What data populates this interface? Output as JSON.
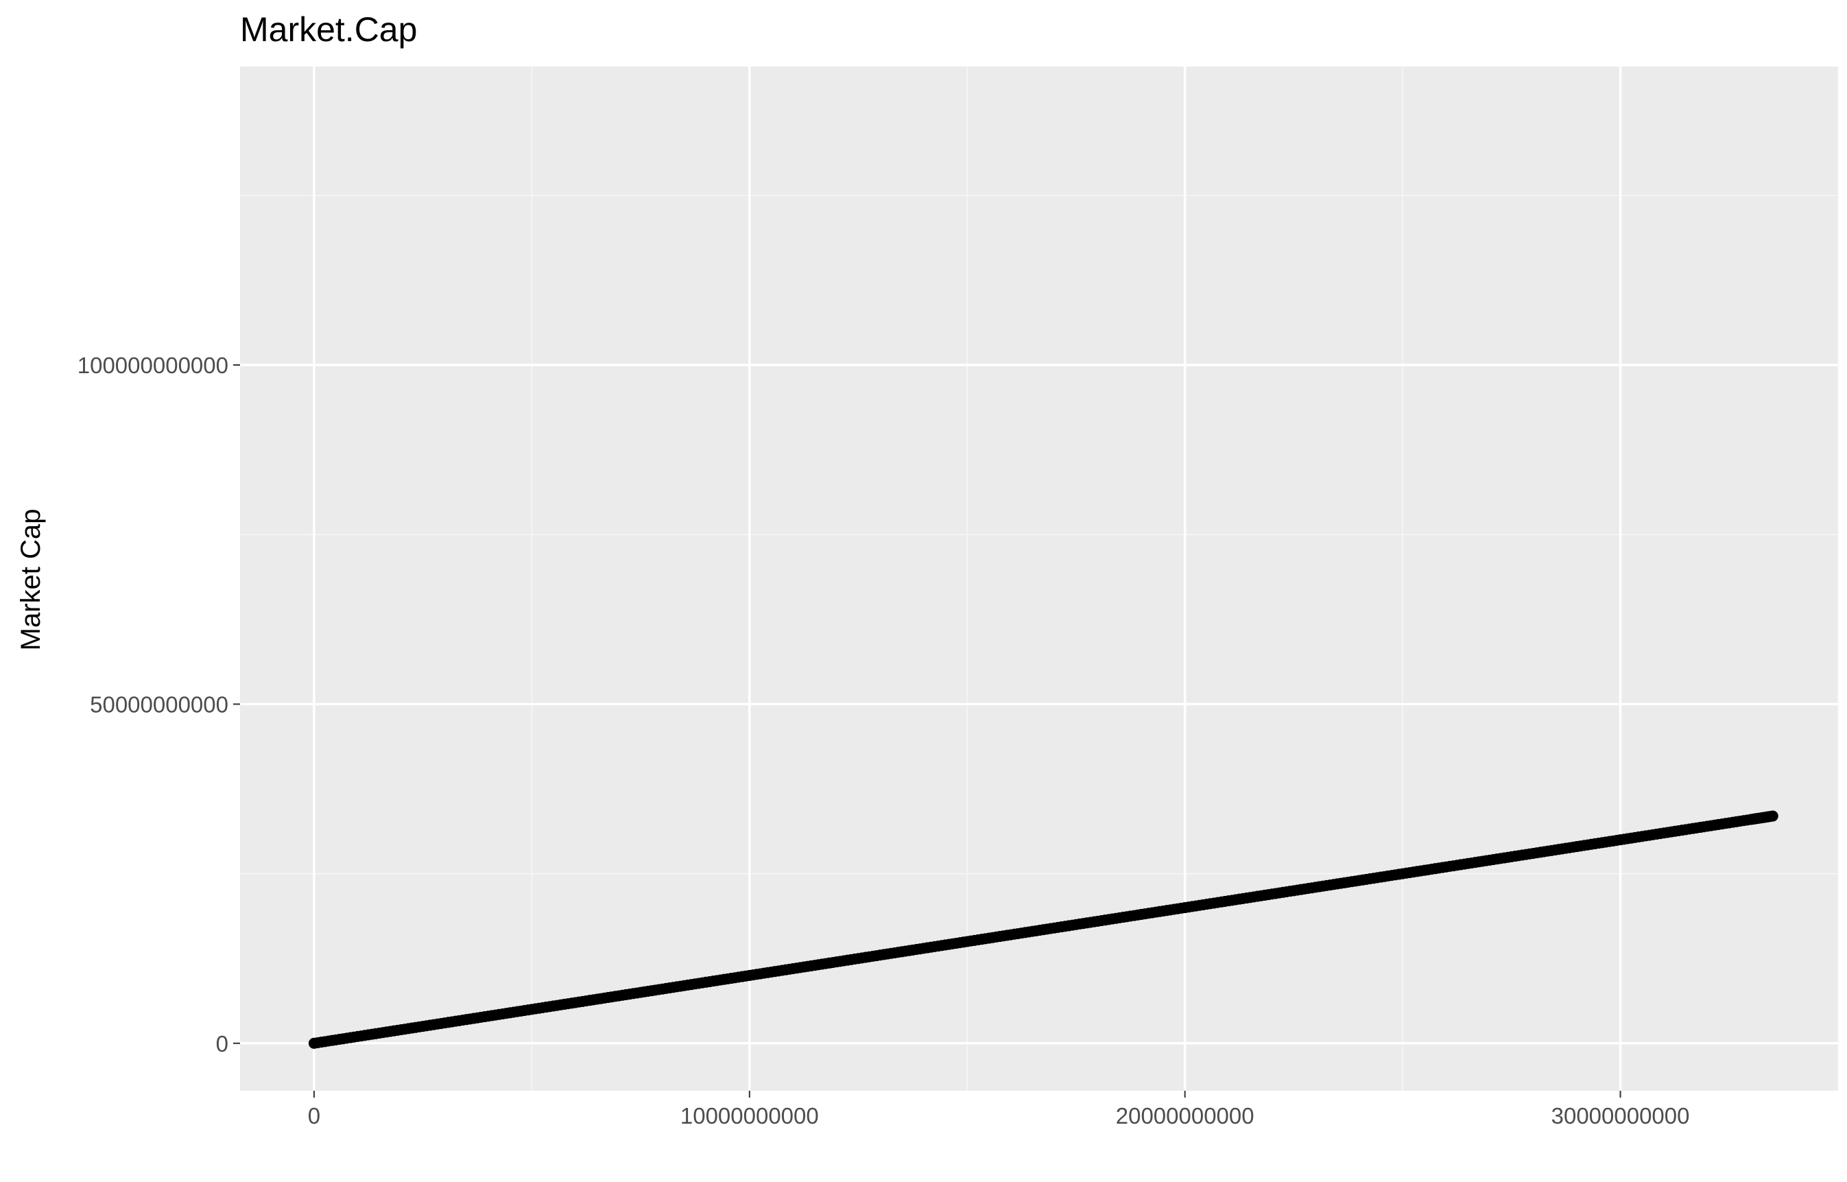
{
  "chart_data": {
    "type": "scatter",
    "title": "Market.Cap",
    "xlabel": "",
    "ylabel": "Market Cap",
    "xlim": [
      -1700000000,
      35000000000
    ],
    "ylim": [
      -7000000000,
      144000000000
    ],
    "x_ticks": [
      0,
      10000000000,
      20000000000,
      30000000000
    ],
    "x_tick_labels": [
      "0",
      "10000000000",
      "20000000000",
      "30000000000"
    ],
    "y_ticks": [
      0,
      50000000000,
      100000000000
    ],
    "y_tick_labels": [
      "0",
      "50000000000",
      "100000000000"
    ],
    "grid": true,
    "series": [
      {
        "points": [
          [
            0,
            0
          ],
          [
            1000000000,
            1000000000
          ],
          [
            2000000000,
            2000000000
          ],
          [
            3000000000,
            3000000000
          ],
          [
            4000000000,
            4000000000
          ],
          [
            5000000000,
            5000000000
          ],
          [
            6000000000,
            6000000000
          ],
          [
            7000000000,
            7000000000
          ],
          [
            8000000000,
            8000000000
          ],
          [
            9000000000,
            9000000000
          ],
          [
            10000000000,
            10000000000
          ],
          [
            11000000000,
            11000000000
          ],
          [
            12000000000,
            12000000000
          ],
          [
            13000000000,
            13000000000
          ],
          [
            14000000000,
            14000000000
          ],
          [
            15000000000,
            15000000000
          ],
          [
            16000000000,
            16000000000
          ],
          [
            17000000000,
            17000000000
          ],
          [
            18000000000,
            18000000000
          ],
          [
            19000000000,
            19000000000
          ],
          [
            20000000000,
            20000000000
          ],
          [
            21000000000,
            21000000000
          ],
          [
            22000000000,
            22000000000
          ],
          [
            23000000000,
            23000000000
          ],
          [
            24000000000,
            24000000000
          ],
          [
            25000000000,
            25000000000
          ],
          [
            26000000000,
            26000000000
          ],
          [
            27000000000,
            27000000000
          ],
          [
            28000000000,
            28000000000
          ],
          [
            29000000000,
            29000000000
          ],
          [
            30000000000,
            30000000000
          ],
          [
            31000000000,
            31000000000
          ],
          [
            32000000000,
            32000000000
          ],
          [
            33000000000,
            33000000000
          ],
          [
            33500000000,
            33500000000
          ]
        ]
      }
    ],
    "colors": {
      "panel_background": "#ebebeb",
      "grid_major": "#ffffff",
      "grid_minor": "#f5f5f5",
      "point": "#000000",
      "tick_text": "#4d4d4d",
      "tick_mark": "#333333"
    }
  }
}
